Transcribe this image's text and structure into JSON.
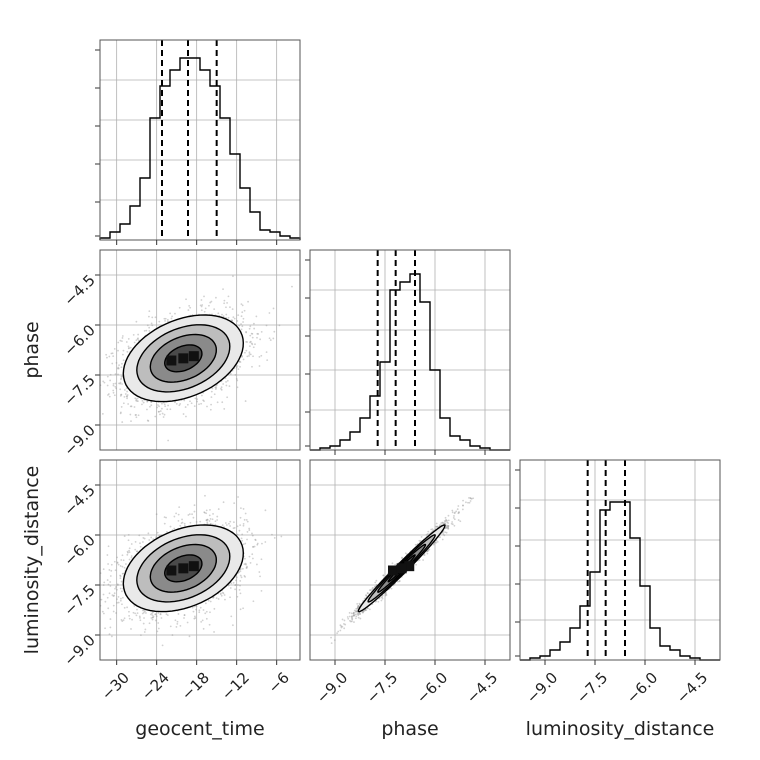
{
  "chart_data": {
    "type": "corner",
    "grid": true,
    "parameters": [
      "geocent_time",
      "phase",
      "luminosity_distance"
    ],
    "axes": {
      "geocent_time": {
        "range": [
          -32.5,
          -2.5
        ],
        "ticks": [
          -30,
          -24,
          -18,
          -12,
          -6
        ],
        "tick_labels": [
          "−30",
          "−24",
          "−18",
          "−12",
          "−6"
        ]
      },
      "phase": {
        "range": [
          -9.75,
          -3.75
        ],
        "ticks": [
          -9.0,
          -7.5,
          -6.0,
          -4.5
        ],
        "tick_labels": [
          "−9.0",
          "−7.5",
          "−6.0",
          "−4.5"
        ]
      },
      "luminosity_distance": {
        "range": [
          -9.75,
          -3.75
        ],
        "ticks": [
          -9.0,
          -7.5,
          -6.0,
          -4.5
        ],
        "tick_labels": [
          "−9.0",
          "−7.5",
          "−6.0",
          "−4.5"
        ]
      }
    },
    "marginals": [
      {
        "parameter": "geocent_time",
        "bin_edges": [
          -32.5,
          -31.0,
          -29.5,
          -28.0,
          -26.5,
          -25.0,
          -23.5,
          -22.0,
          -20.5,
          -19.0,
          -17.5,
          -16.0,
          -14.5,
          -13.0,
          -11.5,
          -10.0,
          -8.5,
          -7.0,
          -5.5,
          -4.0,
          -2.5
        ],
        "counts": [
          0.01,
          0.04,
          0.08,
          0.17,
          0.31,
          0.61,
          0.77,
          0.85,
          0.91,
          0.91,
          0.85,
          0.77,
          0.61,
          0.43,
          0.26,
          0.14,
          0.05,
          0.04,
          0.02,
          0.01
        ],
        "quantiles": [
          -23.2,
          -19.3,
          -15.0
        ]
      },
      {
        "parameter": "phase",
        "bin_edges": [
          -9.75,
          -9.45,
          -9.15,
          -8.85,
          -8.55,
          -8.25,
          -7.95,
          -7.65,
          -7.35,
          -7.05,
          -6.75,
          -6.45,
          -6.15,
          -5.85,
          -5.55,
          -5.25,
          -4.95,
          -4.65,
          -4.35,
          -4.05,
          -3.75
        ],
        "counts": [
          0.0,
          0.01,
          0.02,
          0.05,
          0.09,
          0.16,
          0.27,
          0.44,
          0.8,
          0.84,
          0.88,
          0.74,
          0.4,
          0.16,
          0.07,
          0.05,
          0.02,
          0.01,
          0.0,
          0.0
        ],
        "quantiles": [
          -7.72,
          -7.18,
          -6.6
        ]
      },
      {
        "parameter": "luminosity_distance",
        "bin_edges": [
          -9.75,
          -9.45,
          -9.15,
          -8.85,
          -8.55,
          -8.25,
          -7.95,
          -7.65,
          -7.35,
          -7.05,
          -6.75,
          -6.45,
          -6.15,
          -5.85,
          -5.55,
          -5.25,
          -4.95,
          -4.65,
          -4.35,
          -4.05,
          -3.75
        ],
        "counts": [
          0.0,
          0.01,
          0.02,
          0.05,
          0.09,
          0.16,
          0.27,
          0.44,
          0.75,
          0.79,
          0.79,
          0.61,
          0.37,
          0.16,
          0.07,
          0.05,
          0.02,
          0.01,
          0.0,
          0.0
        ],
        "quantiles": [
          -7.72,
          -7.18,
          -6.6
        ]
      }
    ],
    "joints": [
      {
        "x": "geocent_time",
        "y": "phase",
        "mean": [
          -20.0,
          -7.0
        ],
        "sd": [
          4.5,
          0.65
        ],
        "corr": 0.35,
        "contour_levels": 4
      },
      {
        "x": "geocent_time",
        "y": "luminosity_distance",
        "mean": [
          -20.0,
          -7.0
        ],
        "sd": [
          4.5,
          0.65
        ],
        "corr": 0.35,
        "contour_levels": 4
      },
      {
        "x": "phase",
        "y": "luminosity_distance",
        "mean": [
          -7.0,
          -7.0
        ],
        "sd": [
          0.65,
          0.65
        ],
        "corr": 0.985,
        "contour_levels": 4
      }
    ]
  }
}
